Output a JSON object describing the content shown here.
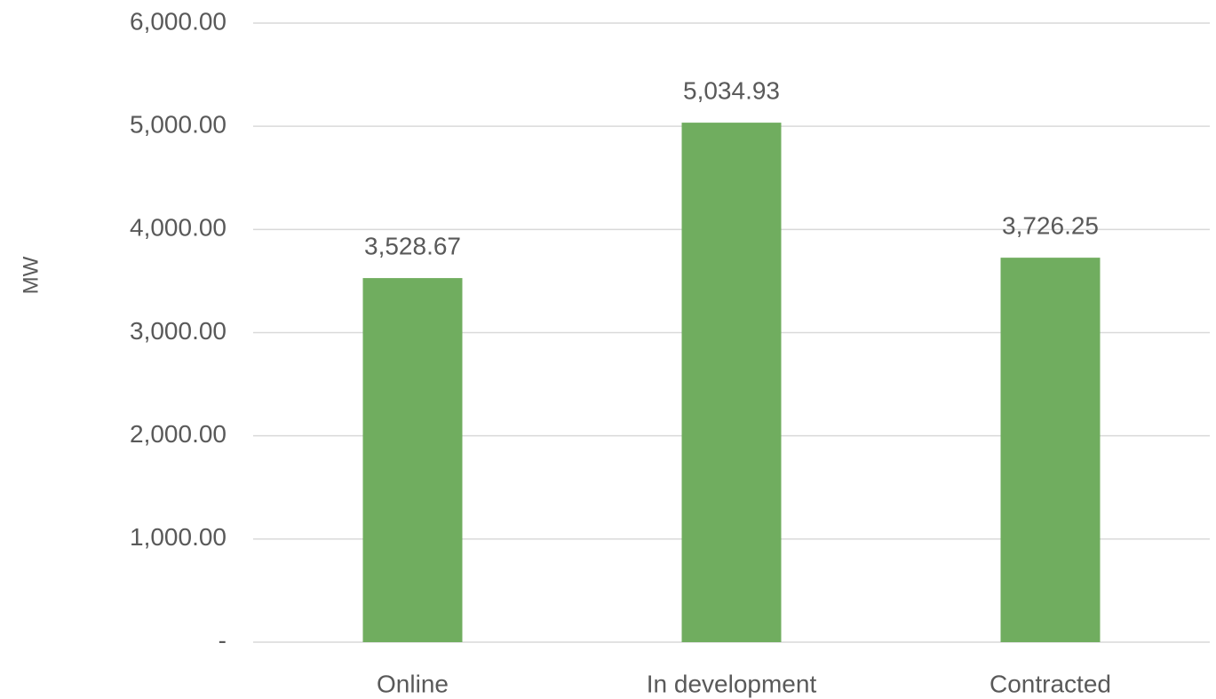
{
  "chart_data": {
    "type": "bar",
    "y_label": "MW",
    "categories": [
      "Online",
      "In development",
      "Contracted"
    ],
    "values": [
      3528.67,
      5034.93,
      3726.25
    ],
    "value_labels": [
      "3,528.67",
      "5,034.93",
      "3,726.25"
    ],
    "color": "#70ad5f",
    "ylim": [
      0,
      6000
    ],
    "yticks": [
      {
        "value": 0,
        "label": "-"
      },
      {
        "value": 1000,
        "label": "1,000.00"
      },
      {
        "value": 2000,
        "label": "2,000.00"
      },
      {
        "value": 3000,
        "label": "3,000.00"
      },
      {
        "value": 4000,
        "label": "4,000.00"
      },
      {
        "value": 5000,
        "label": "5,000.00"
      },
      {
        "value": 6000,
        "label": "6,000.00"
      }
    ],
    "grid": true
  }
}
